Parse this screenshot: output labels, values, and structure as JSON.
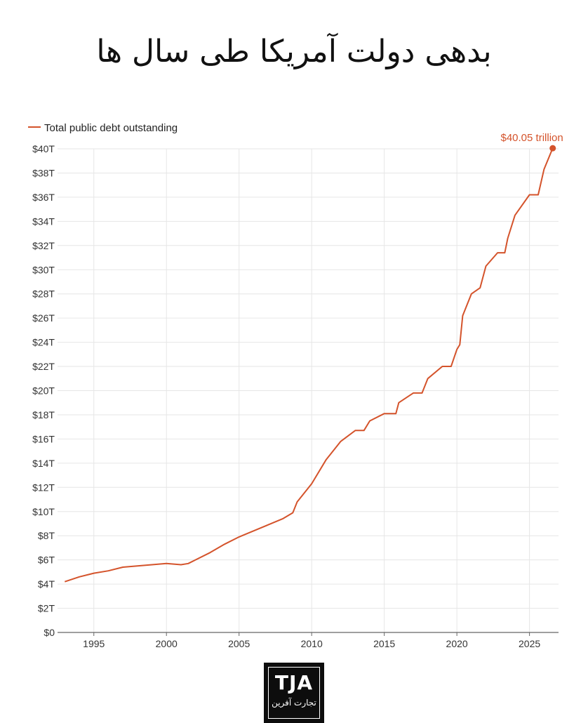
{
  "title": "بدهی دولت آمریکا طی سال ها",
  "logo": {
    "text": "TJA",
    "subtitle": "تجارت آفرین"
  },
  "colors": {
    "line": "#d4532b",
    "grid": "#e6e6e6",
    "axis": "#666666",
    "text": "#333333"
  },
  "chart_data": {
    "type": "line",
    "title": "",
    "xlabel": "",
    "ylabel": "",
    "xlim": [
      1992.5,
      2027.0
    ],
    "ylim": [
      0,
      40
    ],
    "x_ticks": [
      1995,
      2000,
      2005,
      2010,
      2015,
      2020,
      2025
    ],
    "x_tick_labels": [
      "1995",
      "2000",
      "2005",
      "2010",
      "2015",
      "2020",
      "2025"
    ],
    "y_ticks": [
      0,
      2,
      4,
      6,
      8,
      10,
      12,
      14,
      16,
      18,
      20,
      22,
      24,
      26,
      28,
      30,
      32,
      34,
      36,
      38,
      40
    ],
    "y_tick_labels": [
      "$0",
      "$2T",
      "$4T",
      "$6T",
      "$8T",
      "$10T",
      "$12T",
      "$14T",
      "$16T",
      "$18T",
      "$20T",
      "$22T",
      "$24T",
      "$26T",
      "$28T",
      "$30T",
      "$32T",
      "$34T",
      "$36T",
      "$38T",
      "$40T"
    ],
    "grid": true,
    "legend": {
      "position": "top-left",
      "entries": [
        "Total public debt outstanding"
      ]
    },
    "series": [
      {
        "name": "Total public debt outstanding",
        "x": [
          1993.0,
          1994.0,
          1995.0,
          1996.0,
          1997.0,
          1998.0,
          1999.0,
          2000.0,
          2001.0,
          2001.5,
          2002.0,
          2003.0,
          2004.0,
          2005.0,
          2006.0,
          2007.0,
          2008.0,
          2008.7,
          2009.0,
          2010.0,
          2011.0,
          2012.0,
          2013.0,
          2013.6,
          2014.0,
          2015.0,
          2015.8,
          2016.0,
          2017.0,
          2017.6,
          2018.0,
          2019.0,
          2019.6,
          2020.0,
          2020.2,
          2020.4,
          2021.0,
          2021.6,
          2022.0,
          2022.8,
          2023.3,
          2023.5,
          2024.0,
          2025.0,
          2025.6,
          2026.0,
          2026.6
        ],
        "values": [
          4.2,
          4.6,
          4.9,
          5.1,
          5.4,
          5.5,
          5.6,
          5.7,
          5.6,
          5.7,
          6.0,
          6.6,
          7.3,
          7.9,
          8.4,
          8.9,
          9.4,
          9.9,
          10.8,
          12.3,
          14.3,
          15.8,
          16.7,
          16.7,
          17.5,
          18.1,
          18.1,
          19.0,
          19.8,
          19.8,
          21.0,
          22.0,
          22.0,
          23.4,
          23.8,
          26.2,
          28.0,
          28.5,
          30.3,
          31.4,
          31.4,
          32.6,
          34.5,
          36.2,
          36.2,
          38.3,
          40.05
        ]
      }
    ],
    "annotations": [
      {
        "text": "$40.05 trillion",
        "x": 2026.6,
        "y": 40.05
      }
    ]
  }
}
